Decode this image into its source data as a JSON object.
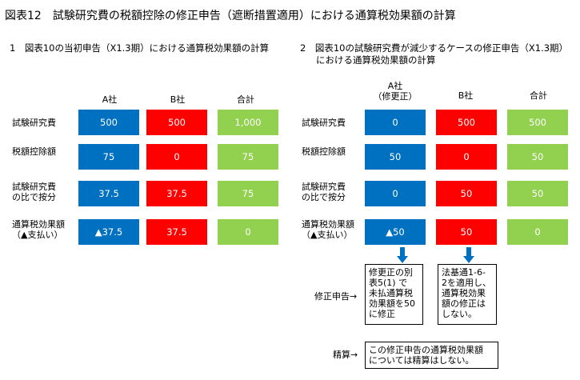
{
  "title": "図表12　試験研究費の税額控除の修正申告（遮断措置適用）における通算税効果額の計算",
  "left": {
    "heading": "1　図表10の当初申告（X1.3期）における通算税効果額の計算",
    "columns": [
      "A社",
      "B社",
      "合計"
    ],
    "rows": [
      {
        "label": [
          "試験研究費"
        ],
        "values": [
          "500",
          "500",
          "1,000"
        ]
      },
      {
        "label": [
          "税額控除額"
        ],
        "values": [
          "75",
          "0",
          "75"
        ]
      },
      {
        "label": [
          "試験研究費",
          "の比で按分"
        ],
        "values": [
          "37.5",
          "37.5",
          "75"
        ]
      },
      {
        "label": [
          "通算税効果額",
          "（▲支払い）"
        ],
        "values": [
          "▲37.5",
          "37.5",
          "0"
        ]
      }
    ]
  },
  "right": {
    "heading_line1": "2　図表10の試験研究費が減少するケースの修正申告（X1.3期）",
    "heading_line2": "における通算税効果額の計算",
    "columns": [
      [
        "A社",
        "（修更正）"
      ],
      [
        "B社"
      ],
      [
        "合計"
      ]
    ],
    "rows": [
      {
        "label": [
          "試験研究費"
        ],
        "values": [
          "0",
          "500",
          "500"
        ]
      },
      {
        "label": [
          "税額控除額"
        ],
        "values": [
          "50",
          "0",
          "50"
        ]
      },
      {
        "label": [
          "試験研究費",
          "の比で按分"
        ],
        "values": [
          "0",
          "50",
          "50"
        ]
      },
      {
        "label": [
          "通算税効果額",
          "（▲支払い）"
        ],
        "values": [
          "▲50",
          "50",
          "0"
        ]
      }
    ],
    "shusei_label": "修正申告→",
    "note_a": [
      "修更正の別",
      "表5(1) で",
      "未払通算税",
      "効果額を50",
      "に修正"
    ],
    "note_b": [
      "法基通1-6-",
      "2を適用し、",
      "通算税効果",
      "額の修正は",
      "しない。"
    ],
    "seisan_label": "精算→",
    "seisan_note": [
      "この修正申告の通算税効果額",
      "については精算はしない。"
    ]
  },
  "colors": {
    "blue": "#0070c0",
    "red": "#ff0000",
    "green": "#92d050"
  }
}
